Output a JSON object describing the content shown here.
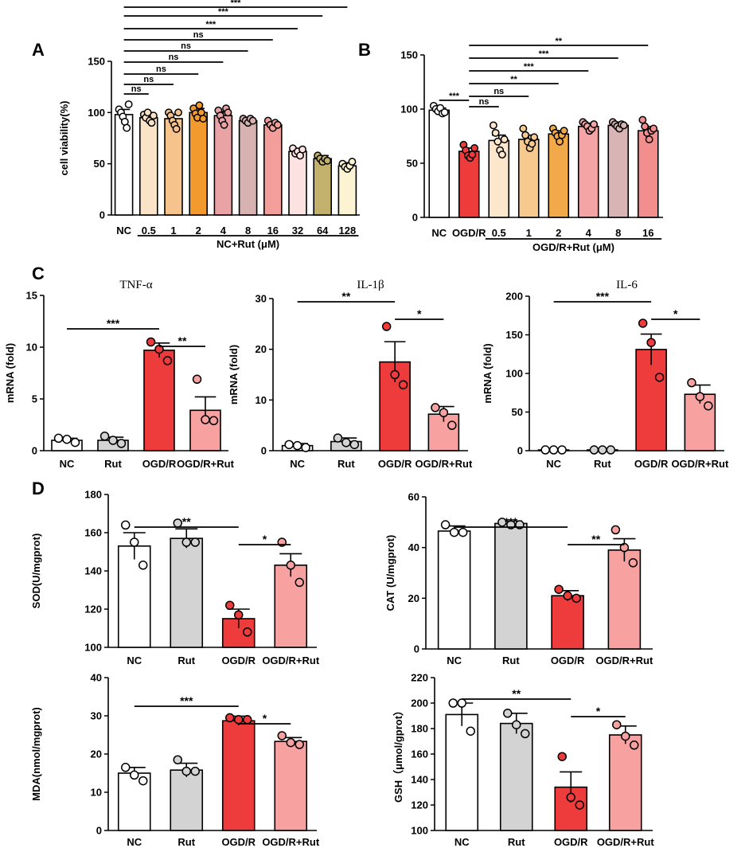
{
  "panels": [
    {
      "id": "A",
      "label": "A"
    },
    {
      "id": "B",
      "label": "B"
    },
    {
      "id": "C",
      "label": "C"
    },
    {
      "id": "D",
      "label": "D"
    }
  ],
  "chart_data": [
    {
      "id": "A",
      "type": "bar",
      "title": "",
      "ylabel": "cell viability(%)",
      "xlabel": "",
      "ylim": [
        0,
        150
      ],
      "yticks": [
        0,
        50,
        100,
        150
      ],
      "categories": [
        "NC",
        "0.5",
        "1",
        "2",
        "4",
        "8",
        "16",
        "32",
        "64",
        "128"
      ],
      "group_label": "NC+Rut (μM)",
      "group_start": 1,
      "group_end": 9,
      "values": [
        98,
        95,
        94,
        100,
        97,
        92,
        88,
        62,
        55,
        48
      ],
      "errors": [
        5,
        3,
        4,
        4,
        4,
        2,
        3,
        3,
        3,
        3
      ],
      "points": [
        [
          103,
          100,
          96,
          91,
          85,
          108
        ],
        [
          98,
          95,
          100,
          92,
          90,
          97
        ],
        [
          100,
          97,
          92,
          88,
          84,
          100
        ],
        [
          104,
          99,
          95,
          107,
          100,
          94
        ],
        [
          102,
          97,
          92,
          88,
          104,
          100
        ],
        [
          94,
          92,
          90,
          94,
          92
        ],
        [
          92,
          88,
          85,
          90,
          88
        ],
        [
          65,
          60,
          62,
          58,
          64
        ],
        [
          58,
          55,
          52,
          55,
          53
        ],
        [
          50,
          47,
          45,
          48,
          52
        ]
      ],
      "colors": [
        "#ffffff",
        "#fbe3c7",
        "#f7c38c",
        "#f29a2e",
        "#e9a3a5",
        "#d7b2b1",
        "#f39e9a",
        "#fde2e2",
        "#c2b06d",
        "#fbf3d1"
      ],
      "comparisons": [
        {
          "i": 0,
          "j": 9,
          "label": "***"
        },
        {
          "i": 0,
          "j": 8,
          "label": "***"
        },
        {
          "i": 0,
          "j": 7,
          "label": "***"
        },
        {
          "i": 0,
          "j": 6,
          "label": "ns"
        },
        {
          "i": 0,
          "j": 5,
          "label": "ns"
        },
        {
          "i": 0,
          "j": 4,
          "label": "ns"
        },
        {
          "i": 0,
          "j": 3,
          "label": "ns"
        },
        {
          "i": 0,
          "j": 2,
          "label": "ns"
        },
        {
          "i": 0,
          "j": 1,
          "label": "ns"
        }
      ]
    },
    {
      "id": "B",
      "type": "bar",
      "title": "",
      "ylabel": "",
      "xlabel": "",
      "ylim": [
        0,
        150
      ],
      "yticks": [
        0,
        50,
        100,
        150
      ],
      "categories": [
        "NC",
        "OGD/R",
        "0.5",
        "1",
        "2",
        "4",
        "8",
        "16"
      ],
      "group_label": "OGD/R+Rut (μM)",
      "group_start": 2,
      "group_end": 7,
      "values": [
        99,
        61,
        71,
        72,
        77,
        84,
        85,
        80
      ],
      "errors": [
        2,
        3,
        5,
        4,
        3,
        3,
        3,
        4
      ],
      "points": [
        [
          103,
          100,
          98,
          101,
          96,
          97
        ],
        [
          67,
          62,
          57,
          55,
          58,
          64
        ],
        [
          85,
          78,
          70,
          62,
          58,
          72
        ],
        [
          82,
          76,
          70,
          64,
          68,
          74
        ],
        [
          82,
          78,
          75,
          70,
          76,
          80
        ],
        [
          88,
          86,
          84,
          80,
          82,
          86
        ],
        [
          88,
          86,
          84,
          82,
          86,
          85
        ],
        [
          90,
          84,
          78,
          72,
          80,
          82
        ]
      ],
      "colors": [
        "#ffffff",
        "#ee3b3b",
        "#fce6cc",
        "#f8c98f",
        "#f2a94a",
        "#f4a4a4",
        "#d9b4b4",
        "#f38e8e"
      ],
      "comparisons": [
        {
          "i": 1,
          "j": 7,
          "label": "**"
        },
        {
          "i": 1,
          "j": 6,
          "label": "***"
        },
        {
          "i": 1,
          "j": 5,
          "label": "***"
        },
        {
          "i": 1,
          "j": 4,
          "label": "**"
        },
        {
          "i": 1,
          "j": 3,
          "label": "ns"
        },
        {
          "i": 1,
          "j": 2,
          "label": "ns"
        },
        {
          "i": 0,
          "j": 1,
          "label": "***"
        }
      ]
    },
    {
      "id": "C1",
      "type": "bar",
      "title": "TNF-α",
      "ylabel": "mRNA (fold)",
      "xlabel": "",
      "ylim": [
        0,
        15
      ],
      "yticks": [
        0,
        5,
        10,
        15
      ],
      "categories": [
        "NC",
        "Rut",
        "OGD/R",
        "OGD/R+Rut"
      ],
      "values": [
        1.0,
        1.0,
        9.7,
        3.9
      ],
      "errors": [
        0.2,
        0.3,
        0.7,
        1.3
      ],
      "points": [
        [
          1.2,
          1.1,
          0.8
        ],
        [
          1.4,
          1.0,
          0.7
        ],
        [
          10.5,
          9.8,
          8.7
        ],
        [
          6.9,
          3.0,
          2.9
        ]
      ],
      "colors": [
        "#ffffff",
        "#d3d3d3",
        "#ee3b3b",
        "#f7a1a1"
      ],
      "comparisons": [
        {
          "i": 0,
          "j": 2,
          "label": "***"
        },
        {
          "i": 2,
          "j": 3,
          "label": "**"
        }
      ]
    },
    {
      "id": "C2",
      "type": "bar",
      "title": "IL-1β",
      "ylabel": "mRNA (fold)",
      "xlabel": "",
      "ylim": [
        0,
        30
      ],
      "yticks": [
        0,
        10,
        20,
        30
      ],
      "categories": [
        "NC",
        "Rut",
        "OGD/R",
        "OGD/R+Rut"
      ],
      "values": [
        1.0,
        1.8,
        17.5,
        7.2
      ],
      "errors": [
        0.4,
        0.7,
        4.0,
        1.5
      ],
      "points": [
        [
          1.2,
          1.0,
          0.6
        ],
        [
          2.5,
          1.6,
          1.2
        ],
        [
          24.5,
          15.0,
          13.0
        ],
        [
          8.5,
          7.5,
          5.0
        ]
      ],
      "colors": [
        "#ffffff",
        "#d3d3d3",
        "#ee3b3b",
        "#f7a1a1"
      ],
      "comparisons": [
        {
          "i": 0,
          "j": 2,
          "label": "**"
        },
        {
          "i": 2,
          "j": 3,
          "label": "*"
        }
      ]
    },
    {
      "id": "C3",
      "type": "bar",
      "title": "IL-6",
      "ylabel": "mRNA (fold)",
      "xlabel": "",
      "ylim": [
        0,
        200
      ],
      "yticks": [
        0,
        50,
        100,
        150,
        200
      ],
      "categories": [
        "NC",
        "Rut",
        "OGD/R",
        "OGD/R+Rut"
      ],
      "values": [
        1,
        1,
        131,
        73
      ],
      "errors": [
        0.5,
        0.5,
        20,
        12
      ],
      "points": [
        [
          1,
          1,
          1
        ],
        [
          1,
          1,
          1
        ],
        [
          165,
          140,
          95
        ],
        [
          88,
          70,
          58
        ]
      ],
      "colors": [
        "#ffffff",
        "#d3d3d3",
        "#ee3b3b",
        "#f7a1a1"
      ],
      "comparisons": [
        {
          "i": 0,
          "j": 2,
          "label": "***"
        },
        {
          "i": 2,
          "j": 3,
          "label": "*"
        }
      ]
    },
    {
      "id": "D1",
      "type": "bar",
      "title": "",
      "ylabel": "SOD(U/mgprot)",
      "xlabel": "",
      "ylim": [
        100,
        180
      ],
      "yticks": [
        100,
        120,
        140,
        160,
        180
      ],
      "categories": [
        "NC",
        "Rut",
        "OGD/R",
        "OGD/R+Rut"
      ],
      "values": [
        153,
        157,
        115,
        143
      ],
      "errors": [
        7,
        5,
        5,
        6
      ],
      "points": [
        [
          164,
          155,
          143
        ],
        [
          165,
          155,
          155
        ],
        [
          122,
          117,
          108
        ],
        [
          155,
          143,
          134
        ]
      ],
      "colors": [
        "#ffffff",
        "#d3d3d3",
        "#ee3b3b",
        "#f7a1a1"
      ],
      "comparisons": [
        {
          "i": 0,
          "j": 2,
          "label": "**"
        },
        {
          "i": 2,
          "j": 3,
          "label": "*"
        }
      ]
    },
    {
      "id": "D2",
      "type": "bar",
      "title": "",
      "ylabel": "CAT (U/mgprot)",
      "xlabel": "",
      "ylim": [
        0,
        60
      ],
      "yticks": [
        0,
        20,
        40,
        60
      ],
      "categories": [
        "NC",
        "Rut",
        "OGD/R",
        "OGD/R+Rut"
      ],
      "values": [
        46.5,
        49.5,
        21,
        39
      ],
      "errors": [
        2,
        1,
        2,
        4.5
      ],
      "points": [
        [
          49,
          46,
          46
        ],
        [
          50,
          49,
          49
        ],
        [
          23.5,
          21,
          20
        ],
        [
          47,
          40,
          34
        ]
      ],
      "colors": [
        "#ffffff",
        "#d3d3d3",
        "#ee3b3b",
        "#f7a1a1"
      ],
      "comparisons": [
        {
          "i": 0,
          "j": 2,
          "label": "***"
        },
        {
          "i": 2,
          "j": 3,
          "label": "**"
        }
      ]
    },
    {
      "id": "D3",
      "type": "bar",
      "title": "",
      "ylabel": "MDA(nmol/mgprot)",
      "xlabel": "",
      "ylim": [
        0,
        40
      ],
      "yticks": [
        0,
        10,
        20,
        30,
        40
      ],
      "categories": [
        "NC",
        "Rut",
        "OGD/R",
        "OGD/R+Rut"
      ],
      "values": [
        15,
        15.8,
        28.7,
        23.3
      ],
      "errors": [
        1.5,
        1.8,
        1.2,
        1
      ],
      "points": [
        [
          16.5,
          14.5,
          13
        ],
        [
          18.5,
          15.5,
          15.5
        ],
        [
          29.5,
          29,
          29
        ],
        [
          24.8,
          23,
          22.5
        ]
      ],
      "colors": [
        "#ffffff",
        "#d3d3d3",
        "#ee3b3b",
        "#f7a1a1"
      ],
      "comparisons": [
        {
          "i": 0,
          "j": 2,
          "label": "***"
        },
        {
          "i": 2,
          "j": 3,
          "label": "*"
        }
      ]
    },
    {
      "id": "D4",
      "type": "bar",
      "title": "",
      "ylabel": "GSH（μmol/gprot）",
      "xlabel": "",
      "ylim": [
        100,
        220
      ],
      "yticks": [
        100,
        120,
        140,
        160,
        180,
        200,
        220
      ],
      "categories": [
        "NC",
        "Rut",
        "OGD/R",
        "OGD/R+Rut"
      ],
      "values": [
        191,
        184,
        134,
        175
      ],
      "errors": [
        9,
        8,
        12,
        7
      ],
      "points": [
        [
          200,
          200,
          178
        ],
        [
          192,
          183,
          176
        ],
        [
          158,
          126,
          120
        ],
        [
          183,
          174,
          167
        ]
      ],
      "colors": [
        "#ffffff",
        "#d3d3d3",
        "#ee3b3b",
        "#f7a1a1"
      ],
      "comparisons": [
        {
          "i": 0,
          "j": 2,
          "label": "**"
        },
        {
          "i": 2,
          "j": 3,
          "label": "*"
        }
      ]
    }
  ]
}
